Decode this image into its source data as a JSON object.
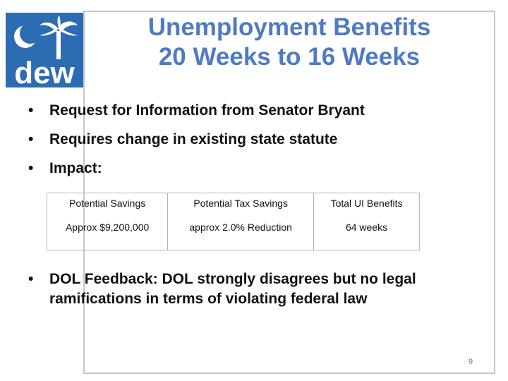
{
  "logo": {
    "text": "dew",
    "icon": "palmetto-crescent-icon",
    "bg_color": "#2b6cb3"
  },
  "title": {
    "line1": "Unemployment Benefits",
    "line2": "20 Weeks to 16 Weeks",
    "color": "#4f7bc2"
  },
  "bullets": [
    "Request for Information from Senator Bryant",
    "Requires change in existing state statute",
    "Impact:"
  ],
  "table": {
    "headers": [
      "Potential Savings",
      "Potential Tax Savings",
      "Total UI Benefits"
    ],
    "row": [
      "Approx $9,200,000",
      "approx 2.0% Reduction",
      "64 weeks"
    ]
  },
  "bullets_after": [
    "DOL Feedback:  DOL strongly disagrees but no legal ramifications in terms of violating federal law"
  ],
  "page_number": "9"
}
